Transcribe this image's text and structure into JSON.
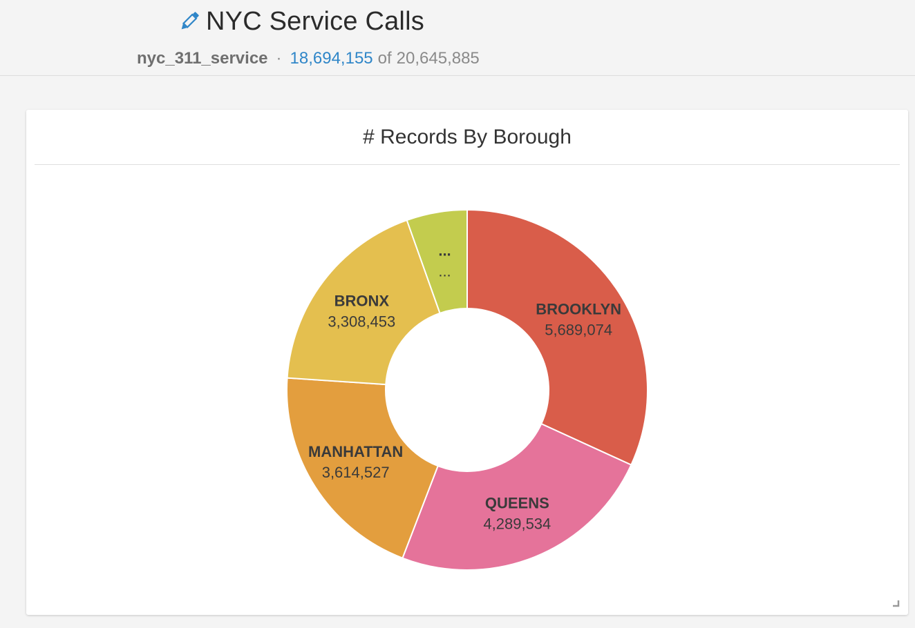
{
  "header": {
    "title": "NYC Service Calls",
    "dataset": "nyc_311_service",
    "separator": "·",
    "filtered_count": "18,694,155",
    "of_label": "of",
    "total_count": "20,645,885"
  },
  "icons": {
    "edit": "pencil-icon",
    "resize": "resize-corner-icon"
  },
  "colors": {
    "accent": "#2f86c8",
    "brooklyn": "#d95d4a",
    "queens": "#e5739a",
    "manhattan": "#e39e3e",
    "bronx": "#e4bf4f",
    "other": "#c3cc4e"
  },
  "chart_data": {
    "type": "pie",
    "variant": "donut",
    "title": "# Records By Borough",
    "slices": [
      {
        "label": "BROOKLYN",
        "value": 5689074,
        "display": "5,689,074",
        "color": "#d95d4a"
      },
      {
        "label": "QUEENS",
        "value": 4289534,
        "display": "4,289,534",
        "color": "#e5739a"
      },
      {
        "label": "MANHATTAN",
        "value": 3614527,
        "display": "3,614,527",
        "color": "#e39e3e"
      },
      {
        "label": "BRONX",
        "value": 3308453,
        "display": "3,308,453",
        "color": "#e4bf4f"
      },
      {
        "label": "...",
        "value": 970000,
        "display": "...",
        "color": "#c3cc4e"
      }
    ]
  }
}
